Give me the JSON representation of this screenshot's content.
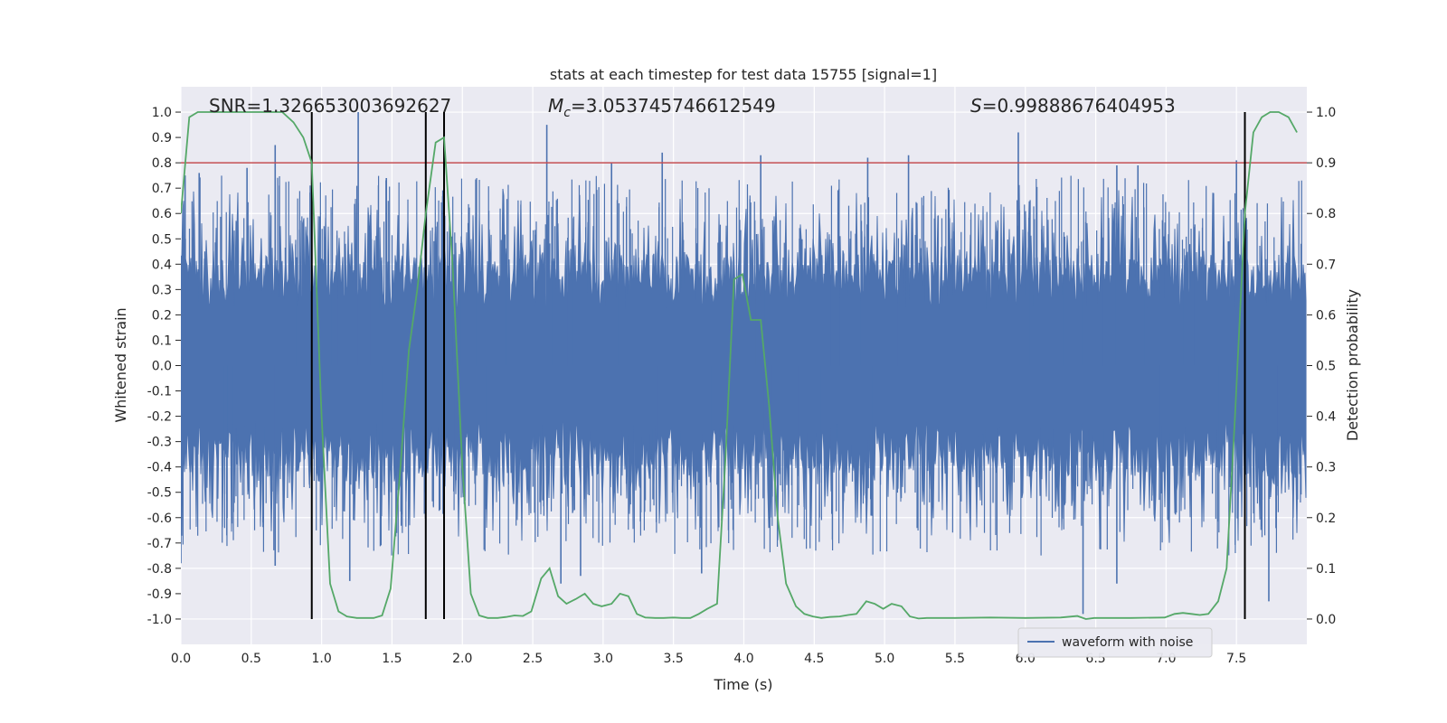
{
  "chart_data": {
    "type": "line",
    "title": "stats at each timestep for test data 15755 [signal=1]",
    "xlabel": "Time (s)",
    "ylabel_left": "Whitened strain",
    "ylabel_right": "Detection probability",
    "xlim": [
      0.0,
      8.0
    ],
    "ylim_left": [
      -1.1,
      1.1
    ],
    "ylim_right": [
      -0.05,
      1.05
    ],
    "xticks": [
      "0.0",
      "0.5",
      "1.0",
      "1.5",
      "2.0",
      "2.5",
      "3.0",
      "3.5",
      "4.0",
      "4.5",
      "5.0",
      "5.5",
      "6.0",
      "6.5",
      "7.0",
      "7.5"
    ],
    "yticks_left": [
      "1.0",
      "0.9",
      "0.8",
      "0.7",
      "0.6",
      "0.5",
      "0.4",
      "0.3",
      "0.2",
      "0.1",
      "0.0",
      "-0.1",
      "-0.2",
      "-0.3",
      "-0.4",
      "-0.5",
      "-0.6",
      "-0.7",
      "-0.8",
      "-0.9",
      "-1.0"
    ],
    "yticks_right": [
      "1.0",
      "0.9",
      "0.8",
      "0.7",
      "0.6",
      "0.5",
      "0.4",
      "0.3",
      "0.2",
      "0.1",
      "0.0"
    ],
    "annotations": {
      "snr": "SNR=1.326653003692627",
      "mc_symbol": "M",
      "mc_sub": "c",
      "mc_value": "=3.053745746612549",
      "s_symbol": "S",
      "s_value": "=0.99888676404953"
    },
    "threshold": {
      "value": 0.9,
      "axis": "right",
      "color": "#c44e52"
    },
    "detection_markers_x": [
      0.93,
      1.74,
      1.87,
      7.56
    ],
    "legend": {
      "label": "waveform with noise",
      "position": "lower-right"
    },
    "series": [
      {
        "name": "waveform with noise",
        "axis": "left",
        "color": "#4c72b0",
        "envelope": "noise fill between approx -0.45 and 0.45 with spikes up to 1.0 and down to -0.98",
        "spikes": [
          {
            "x": 0.03,
            "y": 0.75
          },
          {
            "x": 0.13,
            "y": 0.76
          },
          {
            "x": 0.47,
            "y": 0.78
          },
          {
            "x": 0.67,
            "y": 0.87
          },
          {
            "x": 1.26,
            "y": 1.0
          },
          {
            "x": 1.46,
            "y": 0.74
          },
          {
            "x": 2.6,
            "y": 0.95
          },
          {
            "x": 3.06,
            "y": 0.8
          },
          {
            "x": 3.42,
            "y": 0.84
          },
          {
            "x": 4.12,
            "y": 0.83
          },
          {
            "x": 4.88,
            "y": 0.82
          },
          {
            "x": 5.17,
            "y": 0.83
          },
          {
            "x": 5.95,
            "y": 0.92
          },
          {
            "x": 6.65,
            "y": 0.79
          },
          {
            "x": 6.8,
            "y": 0.79
          },
          {
            "x": 7.5,
            "y": 0.81
          },
          {
            "x": 0.0,
            "y": -0.78
          },
          {
            "x": 0.67,
            "y": -0.79
          },
          {
            "x": 1.2,
            "y": -0.85
          },
          {
            "x": 2.7,
            "y": -0.86
          },
          {
            "x": 2.84,
            "y": -0.83
          },
          {
            "x": 3.7,
            "y": -0.82
          },
          {
            "x": 6.41,
            "y": -0.98
          },
          {
            "x": 6.65,
            "y": -0.86
          },
          {
            "x": 7.73,
            "y": -0.93
          }
        ]
      },
      {
        "name": "detection probability",
        "axis": "right",
        "color": "#55a868",
        "x": [
          0.0,
          0.06,
          0.12,
          0.25,
          0.5,
          0.72,
          0.8,
          0.87,
          0.93,
          1.0,
          1.06,
          1.12,
          1.18,
          1.25,
          1.31,
          1.37,
          1.43,
          1.49,
          1.56,
          1.62,
          1.68,
          1.74,
          1.81,
          1.87,
          1.93,
          2.0,
          2.06,
          2.12,
          2.18,
          2.25,
          2.31,
          2.37,
          2.43,
          2.49,
          2.56,
          2.62,
          2.68,
          2.74,
          2.81,
          2.87,
          2.93,
          2.99,
          3.06,
          3.12,
          3.18,
          3.24,
          3.3,
          3.37,
          3.43,
          3.5,
          3.56,
          3.62,
          3.68,
          3.74,
          3.81,
          3.87,
          3.93,
          3.99,
          4.05,
          4.12,
          4.18,
          4.24,
          4.3,
          4.37,
          4.43,
          4.49,
          4.55,
          4.61,
          4.68,
          4.74,
          4.8,
          4.87,
          4.93,
          4.99,
          5.05,
          5.12,
          5.18,
          5.24,
          5.3,
          5.5,
          5.75,
          6.0,
          6.25,
          6.37,
          6.43,
          6.49,
          6.75,
          6.99,
          7.06,
          7.12,
          7.18,
          7.24,
          7.3,
          7.37,
          7.43,
          7.49,
          7.56,
          7.62,
          7.68,
          7.74,
          7.8,
          7.87,
          7.93
        ],
        "y": [
          0.8,
          0.99,
          1.0,
          1.0,
          1.0,
          1.0,
          0.98,
          0.95,
          0.9,
          0.4,
          0.07,
          0.015,
          0.005,
          0.002,
          0.002,
          0.002,
          0.007,
          0.06,
          0.3,
          0.53,
          0.65,
          0.8,
          0.94,
          0.95,
          0.7,
          0.3,
          0.05,
          0.007,
          0.002,
          0.002,
          0.004,
          0.007,
          0.006,
          0.015,
          0.08,
          0.1,
          0.045,
          0.03,
          0.04,
          0.05,
          0.03,
          0.025,
          0.03,
          0.05,
          0.045,
          0.01,
          0.003,
          0.002,
          0.002,
          0.003,
          0.002,
          0.002,
          0.01,
          0.02,
          0.03,
          0.32,
          0.67,
          0.68,
          0.59,
          0.59,
          0.42,
          0.2,
          0.07,
          0.025,
          0.01,
          0.005,
          0.002,
          0.004,
          0.005,
          0.008,
          0.01,
          0.035,
          0.03,
          0.02,
          0.03,
          0.025,
          0.005,
          0.001,
          0.002,
          0.002,
          0.003,
          0.002,
          0.003,
          0.006,
          0.0,
          0.002,
          0.002,
          0.003,
          0.01,
          0.012,
          0.01,
          0.008,
          0.01,
          0.035,
          0.1,
          0.4,
          0.8,
          0.96,
          0.99,
          1.0,
          1.0,
          0.99,
          0.96
        ]
      }
    ]
  }
}
